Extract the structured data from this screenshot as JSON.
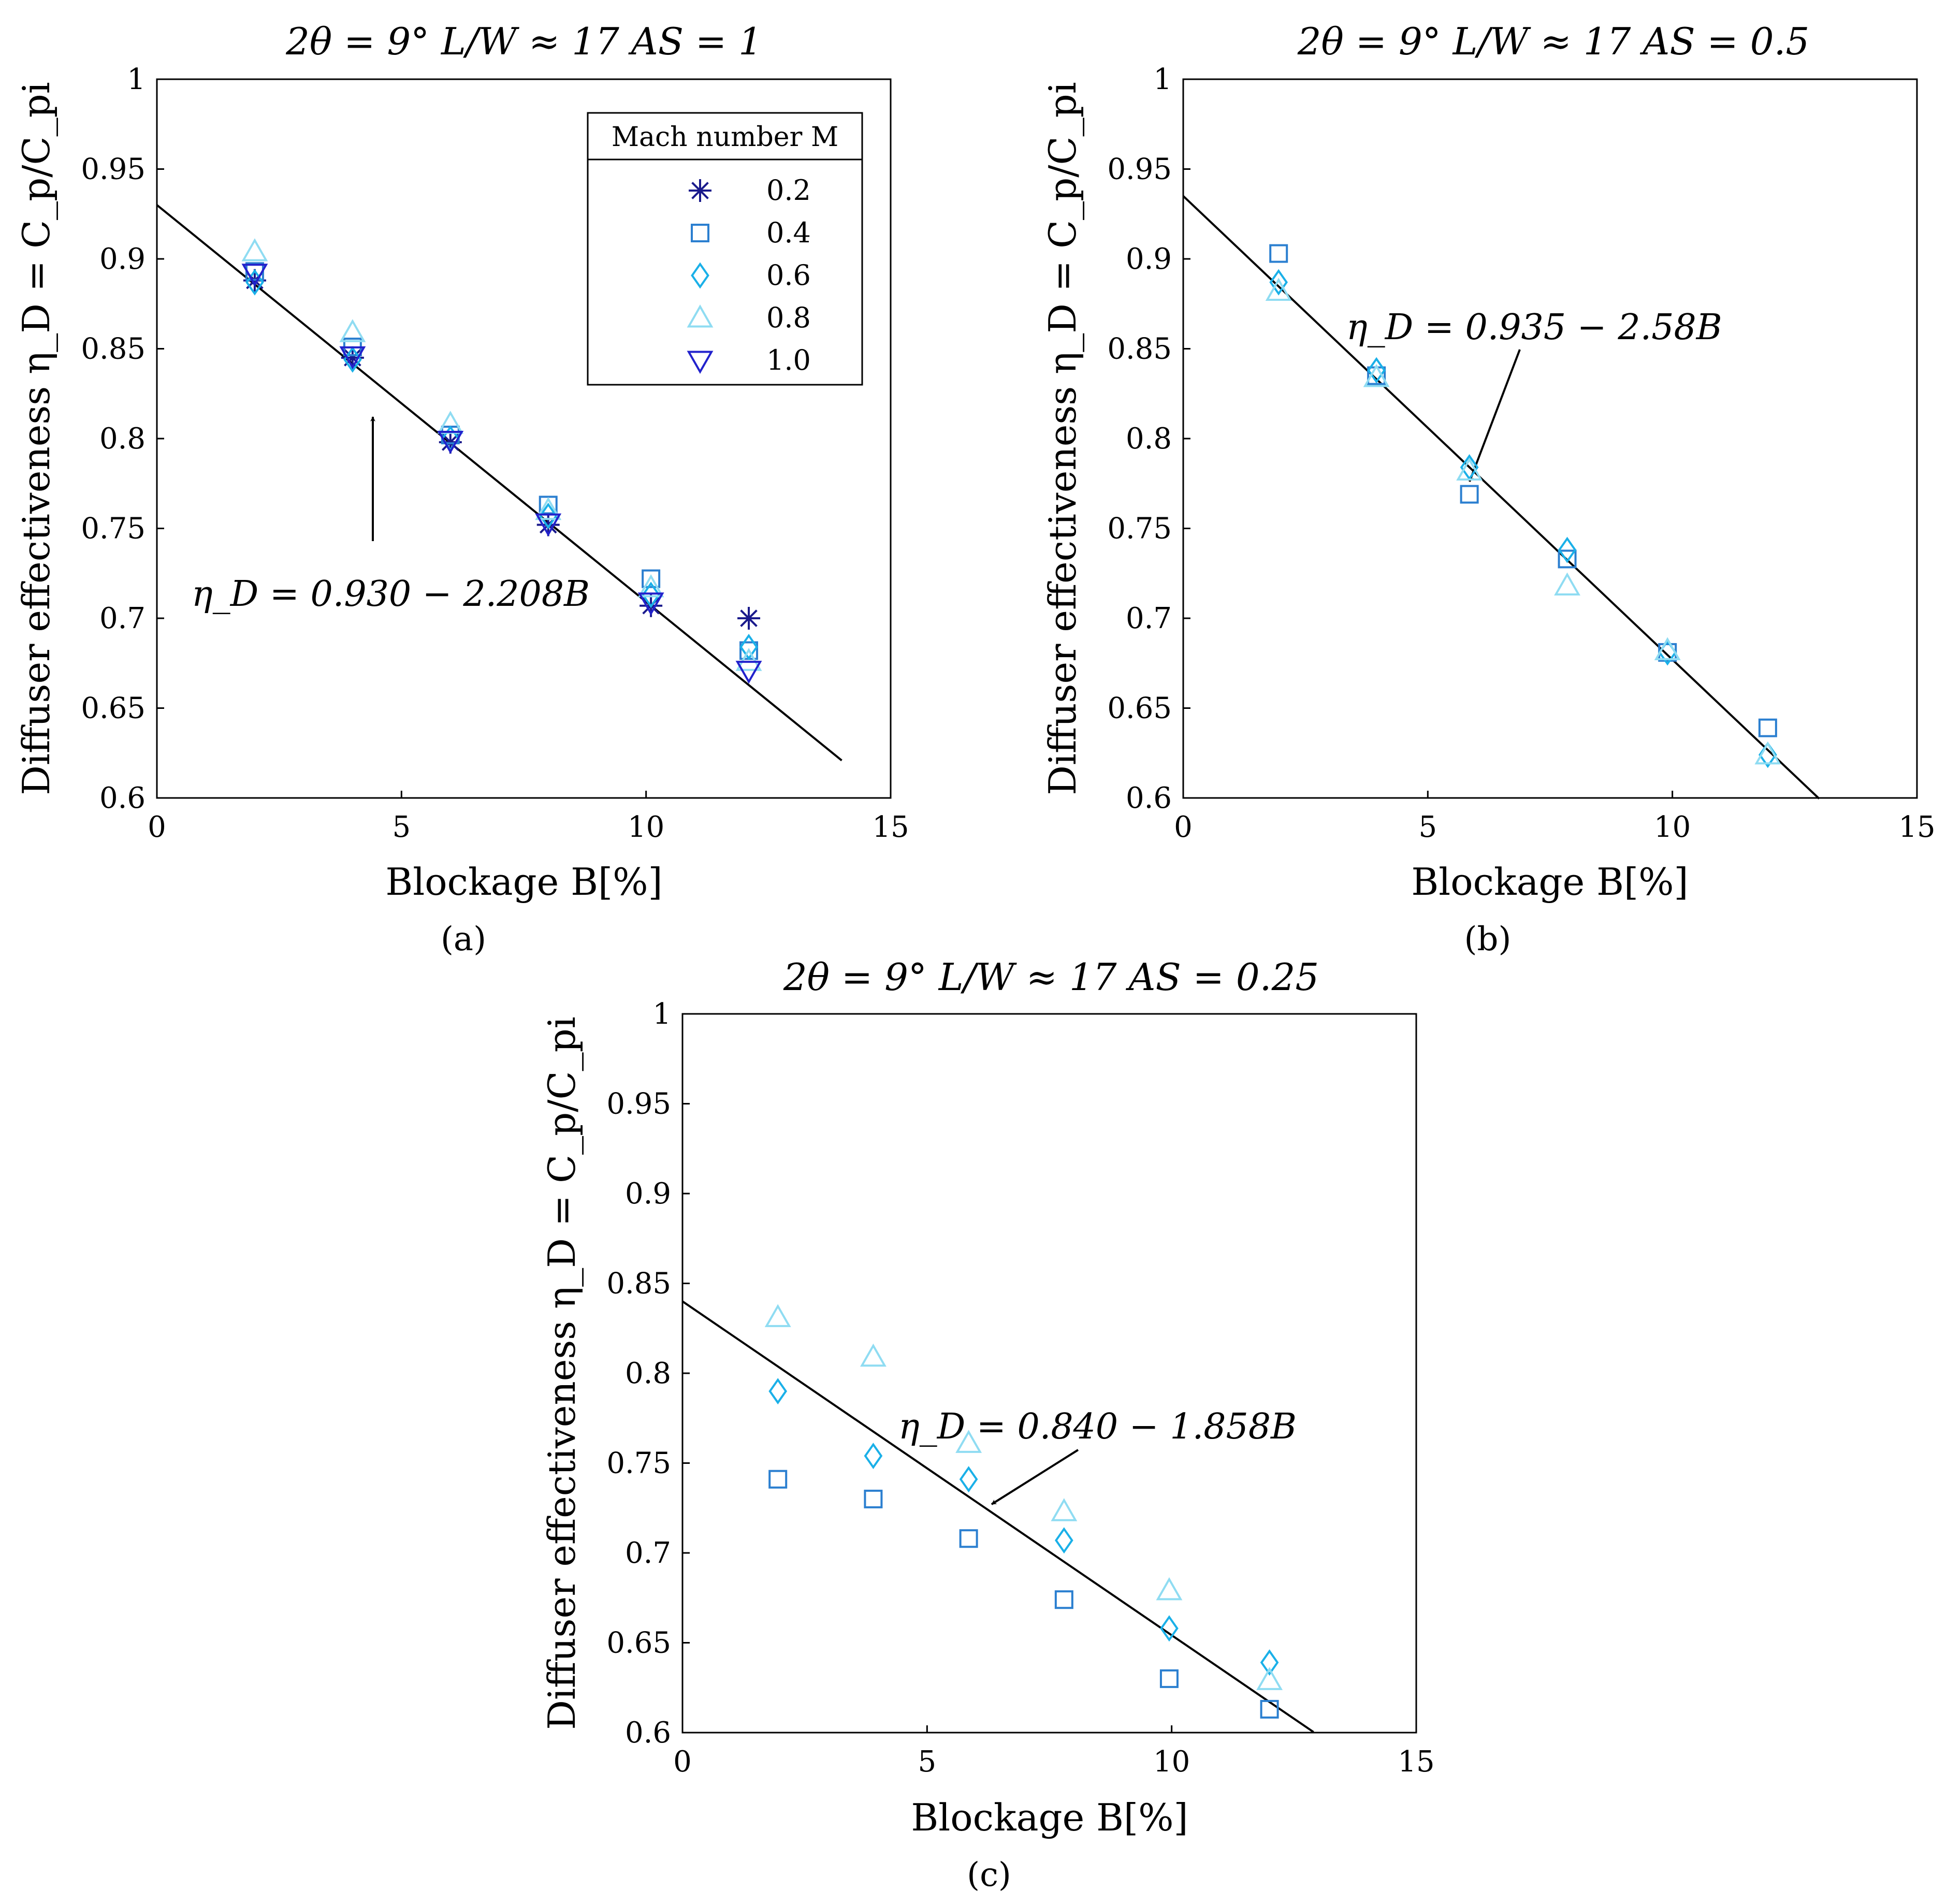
{
  "figure": {
    "legend": {
      "title": "Mach number M",
      "entries": [
        {
          "label": "0.2",
          "marker": "star",
          "color": "#1a1a8c"
        },
        {
          "label": "0.4",
          "marker": "square",
          "color": "#2b7fd0"
        },
        {
          "label": "0.6",
          "marker": "diamond",
          "color": "#1ab0e8"
        },
        {
          "label": "0.8",
          "marker": "triangle-up",
          "color": "#8fdcf2"
        },
        {
          "label": "1.0",
          "marker": "triangle-down",
          "color": "#2222cc"
        }
      ]
    }
  },
  "chart_data": [
    {
      "id": "a",
      "type": "scatter",
      "panel_label": "(a)",
      "title": "2θ = 9° L/W ≈ 17 AS = 1",
      "xlabel": "Blockage B[%]",
      "ylabel": "Diffuser effectiveness η_D = C_p/C_pi",
      "xlim": [
        0,
        15
      ],
      "ylim": [
        0.6,
        1
      ],
      "xticks": [
        "0",
        "5",
        "10",
        "15"
      ],
      "yticks": [
        "0.6",
        "0.65",
        "0.7",
        "0.75",
        "0.8",
        "0.85",
        "0.9",
        "0.95",
        "1"
      ],
      "fit": {
        "label": "η_D = 0.930 − 2.208B",
        "intercept": 0.93,
        "slope_per_percent": -0.02208,
        "x_range": [
          0,
          14
        ]
      },
      "series": [
        {
          "name": "0.2",
          "x": [
            2,
            4,
            6,
            8,
            10.1,
            12.1
          ],
          "y": [
            0.888,
            0.845,
            0.798,
            0.752,
            0.707,
            0.7
          ]
        },
        {
          "name": "0.4",
          "x": [
            2,
            4,
            6,
            8,
            10.1,
            12.1
          ],
          "y": [
            0.893,
            0.851,
            0.802,
            0.763,
            0.722,
            0.682
          ]
        },
        {
          "name": "0.6",
          "x": [
            2,
            4,
            6,
            8,
            10.1,
            12.1
          ],
          "y": [
            0.887,
            0.844,
            0.8,
            0.757,
            0.713,
            0.684
          ]
        },
        {
          "name": "0.8",
          "x": [
            2,
            4,
            6,
            8,
            10.1,
            12.1
          ],
          "y": [
            0.904,
            0.859,
            0.808,
            0.76,
            0.717,
            0.676
          ]
        },
        {
          "name": "1.0",
          "x": [
            2,
            4,
            6,
            8,
            10.1,
            12.1
          ],
          "y": [
            0.892,
            0.846,
            0.799,
            0.753,
            0.709,
            0.671
          ]
        }
      ]
    },
    {
      "id": "b",
      "type": "scatter",
      "panel_label": "(b)",
      "title": "2θ = 9° L/W ≈ 17 AS = 0.5",
      "xlabel": "Blockage B[%]",
      "ylabel": "Diffuser effectiveness η_D = C_p/C_pi",
      "xlim": [
        0,
        15
      ],
      "ylim": [
        0.6,
        1
      ],
      "xticks": [
        "0",
        "5",
        "10",
        "15"
      ],
      "yticks": [
        "0.6",
        "0.65",
        "0.7",
        "0.75",
        "0.8",
        "0.85",
        "0.9",
        "0.95",
        "1"
      ],
      "fit": {
        "label": "η_D = 0.935 − 2.58B",
        "intercept": 0.935,
        "slope_per_percent": -0.0258,
        "x_range": [
          0,
          13
        ]
      },
      "series": [
        {
          "name": "0.4",
          "x": [
            1.95,
            3.95,
            5.85,
            7.85,
            9.9,
            11.95
          ],
          "y": [
            0.903,
            0.835,
            0.769,
            0.733,
            0.681,
            0.639
          ]
        },
        {
          "name": "0.6",
          "x": [
            1.95,
            3.95,
            5.85,
            7.85,
            9.9,
            11.95
          ],
          "y": [
            0.887,
            0.838,
            0.784,
            0.738,
            0.681,
            0.624
          ]
        },
        {
          "name": "0.8",
          "x": [
            1.95,
            3.95,
            5.85,
            7.85,
            9.9,
            11.95
          ],
          "y": [
            0.882,
            0.834,
            0.782,
            0.718,
            0.682,
            0.624
          ]
        }
      ]
    },
    {
      "id": "c",
      "type": "scatter",
      "panel_label": "(c)",
      "title": "2θ = 9° L/W ≈ 17 AS = 0.25",
      "xlabel": "Blockage B[%]",
      "ylabel": "Diffuser effectiveness η_D = C_p/C_pi",
      "xlim": [
        0,
        15
      ],
      "ylim": [
        0.6,
        1
      ],
      "xticks": [
        "0",
        "5",
        "10",
        "15"
      ],
      "yticks": [
        "0.6",
        "0.65",
        "0.7",
        "0.75",
        "0.8",
        "0.85",
        "0.9",
        "0.95",
        "1"
      ],
      "fit": {
        "label": "η_D = 0.840 − 1.858B",
        "intercept": 0.84,
        "slope_per_percent": -0.01858,
        "x_range": [
          0,
          12.9
        ]
      },
      "series": [
        {
          "name": "0.4",
          "x": [
            1.95,
            3.9,
            5.85,
            7.8,
            9.95,
            12
          ],
          "y": [
            0.741,
            0.73,
            0.708,
            0.674,
            0.63,
            0.613
          ]
        },
        {
          "name": "0.6",
          "x": [
            1.95,
            3.9,
            5.85,
            7.8,
            9.95,
            12
          ],
          "y": [
            0.79,
            0.754,
            0.741,
            0.707,
            0.658,
            0.639
          ]
        },
        {
          "name": "0.8",
          "x": [
            1.95,
            3.9,
            5.85,
            7.8,
            9.95,
            12
          ],
          "y": [
            0.831,
            0.809,
            0.761,
            0.723,
            0.679,
            0.629
          ]
        }
      ]
    }
  ]
}
